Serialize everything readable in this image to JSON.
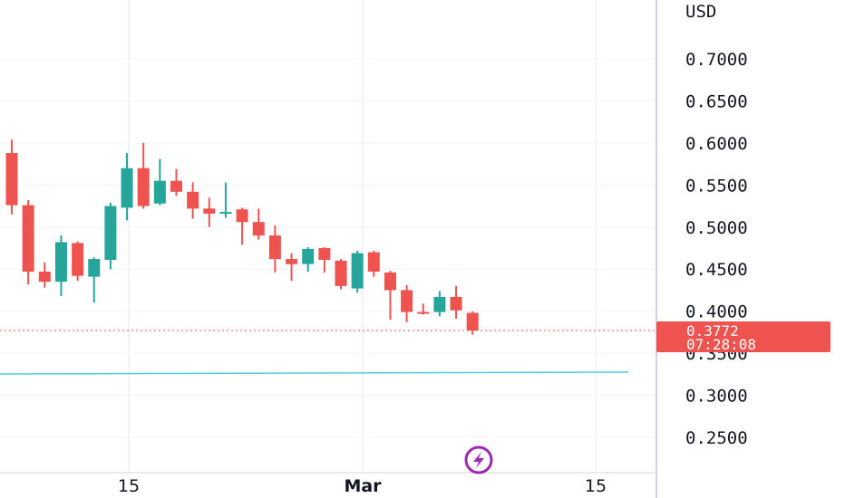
{
  "chart_data": {
    "type": "candlestick",
    "currency": "USD",
    "y_ticks": [
      "0.7000",
      "0.6500",
      "0.6000",
      "0.5500",
      "0.5000",
      "0.4500",
      "0.4000",
      "0.3500",
      "0.3000",
      "0.2500"
    ],
    "y_tick_values": [
      0.7,
      0.65,
      0.6,
      0.55,
      0.5,
      0.45,
      0.4,
      0.35,
      0.3,
      0.25
    ],
    "x_ticks": [
      "15",
      "Mar",
      "15"
    ],
    "ylim": [
      0.21,
      0.725
    ],
    "grid": true,
    "candles": [
      {
        "o": 0.588,
        "h": 0.604,
        "l": 0.515,
        "c": 0.526
      },
      {
        "o": 0.526,
        "h": 0.532,
        "l": 0.432,
        "c": 0.447
      },
      {
        "o": 0.447,
        "h": 0.458,
        "l": 0.428,
        "c": 0.435
      },
      {
        "o": 0.435,
        "h": 0.49,
        "l": 0.418,
        "c": 0.482
      },
      {
        "o": 0.481,
        "h": 0.483,
        "l": 0.436,
        "c": 0.442
      },
      {
        "o": 0.441,
        "h": 0.464,
        "l": 0.41,
        "c": 0.462
      },
      {
        "o": 0.461,
        "h": 0.529,
        "l": 0.45,
        "c": 0.525
      },
      {
        "o": 0.523,
        "h": 0.588,
        "l": 0.508,
        "c": 0.57
      },
      {
        "o": 0.57,
        "h": 0.6,
        "l": 0.522,
        "c": 0.525
      },
      {
        "o": 0.528,
        "h": 0.581,
        "l": 0.526,
        "c": 0.555
      },
      {
        "o": 0.555,
        "h": 0.569,
        "l": 0.537,
        "c": 0.542
      },
      {
        "o": 0.542,
        "h": 0.553,
        "l": 0.51,
        "c": 0.522
      },
      {
        "o": 0.522,
        "h": 0.535,
        "l": 0.5,
        "c": 0.516
      },
      {
        "o": 0.516,
        "h": 0.553,
        "l": 0.511,
        "c": 0.518
      },
      {
        "o": 0.521,
        "h": 0.523,
        "l": 0.479,
        "c": 0.506
      },
      {
        "o": 0.506,
        "h": 0.522,
        "l": 0.485,
        "c": 0.49
      },
      {
        "o": 0.49,
        "h": 0.502,
        "l": 0.446,
        "c": 0.462
      },
      {
        "o": 0.462,
        "h": 0.469,
        "l": 0.436,
        "c": 0.456
      },
      {
        "o": 0.456,
        "h": 0.476,
        "l": 0.447,
        "c": 0.474
      },
      {
        "o": 0.475,
        "h": 0.476,
        "l": 0.446,
        "c": 0.461
      },
      {
        "o": 0.46,
        "h": 0.462,
        "l": 0.426,
        "c": 0.43
      },
      {
        "o": 0.427,
        "h": 0.472,
        "l": 0.422,
        "c": 0.469
      },
      {
        "o": 0.47,
        "h": 0.472,
        "l": 0.441,
        "c": 0.447
      },
      {
        "o": 0.446,
        "h": 0.448,
        "l": 0.39,
        "c": 0.425
      },
      {
        "o": 0.425,
        "h": 0.431,
        "l": 0.387,
        "c": 0.399
      },
      {
        "o": 0.399,
        "h": 0.409,
        "l": 0.396,
        "c": 0.398
      },
      {
        "o": 0.399,
        "h": 0.424,
        "l": 0.394,
        "c": 0.417
      },
      {
        "o": 0.417,
        "h": 0.43,
        "l": 0.391,
        "c": 0.401
      },
      {
        "o": 0.398,
        "h": 0.4,
        "l": 0.372,
        "c": 0.377
      }
    ],
    "last_price": "0.3772",
    "countdown": "07:28:08",
    "horizontal_line_value": 0.325
  },
  "colors": {
    "up": "#26a69a",
    "down": "#ef5350",
    "grid": "#f0f3fa",
    "axis_border": "#d1d4dc",
    "text": "#131722",
    "hline": "#4dd0e1",
    "badge": "#ef5350",
    "lightning": "#9c27b0"
  },
  "icons": {
    "bottom": "lightning-icon"
  }
}
